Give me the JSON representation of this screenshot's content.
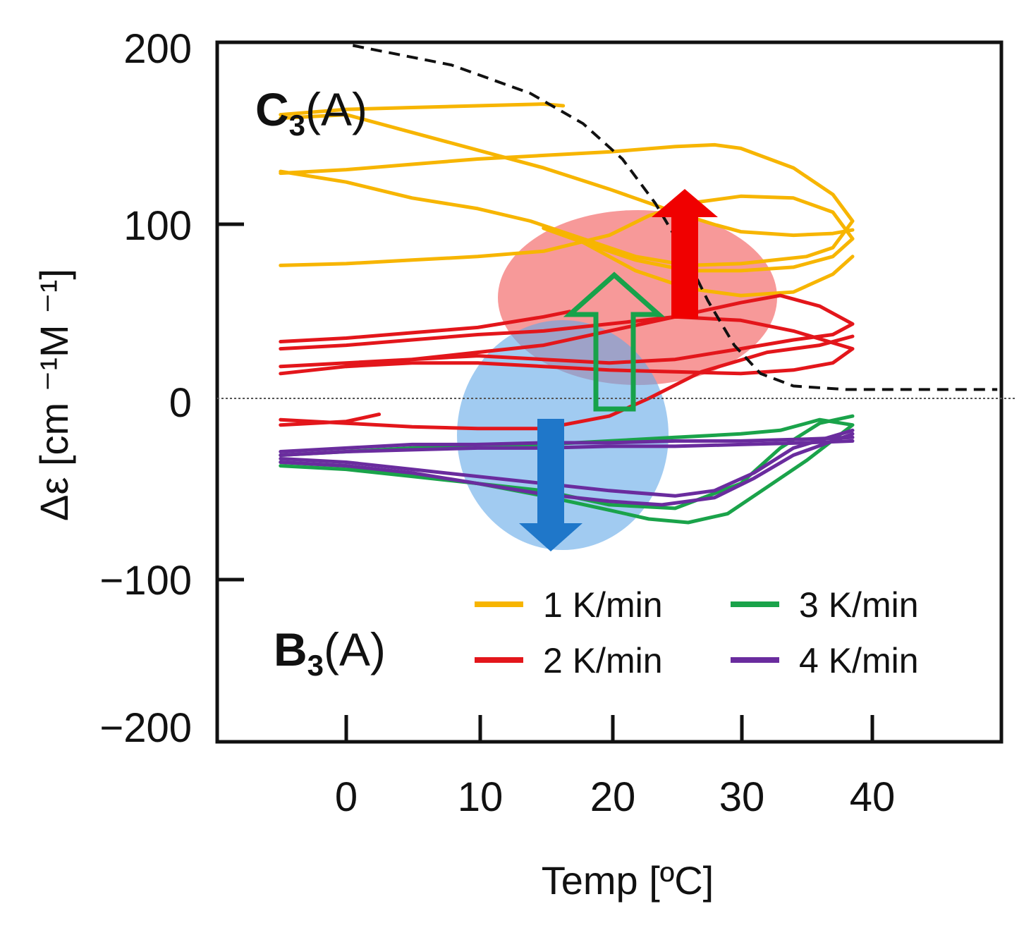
{
  "chart_data": {
    "type": "line",
    "title": "",
    "xlabel": "Temp [ºC]",
    "ylabel": "Δε [cm ⁻¹M ⁻¹]",
    "xlim": [
      -10,
      50
    ],
    "ylim": [
      -200,
      200
    ],
    "xticks": [
      0,
      10,
      20,
      30,
      40
    ],
    "xtick_labels": [
      "0",
      "10",
      "20",
      "30",
      "40"
    ],
    "yticks": [
      200,
      100,
      0,
      -100,
      -200
    ],
    "ytick_labels": [
      "200",
      "100",
      "0",
      "−100",
      "−200"
    ],
    "grid": false,
    "legend_position": "bottom-right",
    "colors": {
      "1 K/min": "#F7B500",
      "2 K/min": "#E3161B",
      "3 K/min": "#1AA34A",
      "4 K/min": "#6A2C9E",
      "dashed_curve": "#111111",
      "red_region": "#F25A5A",
      "blue_region": "#62A8E8",
      "red_arrow": "#F00000",
      "blue_arrow": "#1F77C9",
      "green_arrow": "#17A24A"
    },
    "state_labels": [
      {
        "main": "C",
        "sub": "3",
        "suffix": "(A)"
      },
      {
        "main": "B",
        "sub": "3",
        "suffix": "(A)"
      }
    ],
    "series": [
      {
        "name": "1 K/min",
        "paths": [
          [
            [
              -5,
              160
            ],
            [
              0,
              163
            ],
            [
              5,
              164
            ],
            [
              10,
              165
            ],
            [
              15,
              166
            ],
            [
              16.5,
              165
            ]
          ],
          [
            [
              -5,
              158
            ],
            [
              0,
              160
            ],
            [
              5,
              150
            ],
            [
              10,
              140
            ],
            [
              15,
              130
            ],
            [
              20,
              118
            ],
            [
              25,
              105
            ],
            [
              28,
              98
            ],
            [
              30,
              94
            ],
            [
              34,
              92
            ],
            [
              37,
              93
            ],
            [
              38.5,
              95
            ]
          ],
          [
            [
              -5,
              127
            ],
            [
              0,
              129
            ],
            [
              5,
              132
            ],
            [
              10,
              135
            ],
            [
              15,
              137
            ],
            [
              20,
              139
            ],
            [
              25,
              142
            ],
            [
              28,
              143
            ],
            [
              30,
              141
            ],
            [
              34,
              130
            ],
            [
              37,
              115
            ],
            [
              38.5,
              100
            ],
            [
              37,
              85
            ],
            [
              35,
              80
            ],
            [
              30,
              76
            ],
            [
              26,
              75
            ],
            [
              22,
              80
            ],
            [
              18,
              90
            ],
            [
              14,
              100
            ],
            [
              10,
              107
            ],
            [
              5,
              113
            ],
            [
              0,
              122
            ],
            [
              -5,
              128
            ]
          ],
          [
            [
              -5,
              75
            ],
            [
              0,
              76
            ],
            [
              5,
              78
            ],
            [
              10,
              80
            ],
            [
              15,
              83
            ],
            [
              20,
              92
            ],
            [
              23,
              103
            ],
            [
              26,
              110
            ],
            [
              30,
              114
            ],
            [
              34,
              113
            ],
            [
              37,
              105
            ],
            [
              38.5,
              90
            ],
            [
              37,
              80
            ],
            [
              34,
              74
            ],
            [
              30,
              72
            ],
            [
              26,
              72
            ],
            [
              22,
              78
            ],
            [
              18,
              88
            ],
            [
              15,
              96
            ]
          ],
          [
            [
              15,
              96
            ],
            [
              18,
              88
            ],
            [
              22,
              72
            ],
            [
              26,
              62
            ],
            [
              30,
              58
            ],
            [
              34,
              60
            ],
            [
              37,
              70
            ],
            [
              38.5,
              80
            ]
          ]
        ]
      },
      {
        "name": "2 K/min",
        "paths": [
          [
            [
              -5,
              32
            ],
            [
              0,
              34
            ],
            [
              5,
              37
            ],
            [
              10,
              40
            ],
            [
              15,
              46
            ],
            [
              17,
              49
            ]
          ],
          [
            [
              -5,
              14
            ],
            [
              0,
              18
            ],
            [
              5,
              22
            ],
            [
              10,
              26
            ],
            [
              15,
              30
            ],
            [
              20,
              38
            ],
            [
              25,
              46
            ],
            [
              30,
              54
            ],
            [
              33,
              58
            ],
            [
              36,
              52
            ],
            [
              38.5,
              42
            ],
            [
              37,
              36
            ],
            [
              34,
              33
            ],
            [
              30,
              28
            ],
            [
              25,
              22
            ],
            [
              20,
              20
            ],
            [
              15,
              22
            ],
            [
              10,
              24
            ],
            [
              5,
              22
            ],
            [
              0,
              20
            ],
            [
              -5,
              18
            ]
          ],
          [
            [
              -5,
              28
            ],
            [
              0,
              30
            ],
            [
              5,
              33
            ],
            [
              10,
              36
            ],
            [
              15,
              38
            ],
            [
              20,
              42
            ],
            [
              25,
              46
            ],
            [
              30,
              44
            ],
            [
              34,
              38
            ],
            [
              38.5,
              28
            ],
            [
              37,
              20
            ],
            [
              34,
              16
            ],
            [
              30,
              14
            ],
            [
              25,
              15
            ],
            [
              20,
              16
            ],
            [
              15,
              18
            ],
            [
              10,
              20
            ],
            [
              5,
              20
            ],
            [
              0,
              18
            ]
          ],
          [
            [
              -5,
              -15
            ],
            [
              0,
              -13
            ],
            [
              2.5,
              -9
            ]
          ],
          [
            [
              -5,
              -12
            ],
            [
              0,
              -14
            ],
            [
              5,
              -16
            ],
            [
              10,
              -17
            ],
            [
              15,
              -17
            ],
            [
              20,
              -10
            ],
            [
              23,
              0
            ],
            [
              27,
              15
            ],
            [
              32,
              26
            ],
            [
              36,
              30
            ],
            [
              38.5,
              35
            ]
          ]
        ]
      },
      {
        "name": "3 K/min",
        "paths": [
          [
            [
              -5,
              -38
            ],
            [
              0,
              -40
            ],
            [
              5,
              -44
            ],
            [
              10,
              -48
            ],
            [
              15,
              -55
            ],
            [
              20,
              -63
            ],
            [
              23,
              -68
            ],
            [
              26,
              -70
            ],
            [
              29,
              -65
            ],
            [
              32,
              -50
            ],
            [
              35,
              -35
            ],
            [
              38.5,
              -15
            ],
            [
              36,
              -12
            ],
            [
              33,
              -18
            ],
            [
              30,
              -20
            ],
            [
              25,
              -22
            ],
            [
              20,
              -24
            ],
            [
              15,
              -26
            ],
            [
              10,
              -26
            ],
            [
              5,
              -28
            ],
            [
              0,
              -30
            ],
            [
              -5,
              -32
            ]
          ],
          [
            [
              -5,
              -36
            ],
            [
              0,
              -38
            ],
            [
              5,
              -43
            ],
            [
              10,
              -48
            ],
            [
              15,
              -52
            ],
            [
              20,
              -60
            ],
            [
              25,
              -62
            ],
            [
              30,
              -48
            ],
            [
              33,
              -28
            ],
            [
              36,
              -14
            ],
            [
              38.5,
              -10
            ]
          ]
        ]
      },
      {
        "name": "4 K/min",
        "paths": [
          [
            [
              -5,
              -30
            ],
            [
              0,
              -28
            ],
            [
              5,
              -26
            ],
            [
              10,
              -26
            ],
            [
              15,
              -25
            ],
            [
              20,
              -25
            ],
            [
              25,
              -24
            ],
            [
              30,
              -24
            ],
            [
              35,
              -23
            ],
            [
              38.5,
              -22
            ]
          ],
          [
            [
              -5,
              -34
            ],
            [
              0,
              -36
            ],
            [
              5,
              -40
            ],
            [
              10,
              -44
            ],
            [
              15,
              -48
            ],
            [
              20,
              -52
            ],
            [
              25,
              -55
            ],
            [
              28,
              -52
            ],
            [
              31,
              -42
            ],
            [
              34,
              -28
            ],
            [
              38.5,
              -18
            ]
          ],
          [
            [
              -5,
              -36
            ],
            [
              0,
              -38
            ],
            [
              5,
              -42
            ],
            [
              10,
              -48
            ],
            [
              15,
              -54
            ],
            [
              20,
              -58
            ],
            [
              24,
              -60
            ],
            [
              28,
              -56
            ],
            [
              31,
              -45
            ],
            [
              34,
              -32
            ],
            [
              38.5,
              -20
            ]
          ],
          [
            [
              -5,
              -32
            ],
            [
              0,
              -30
            ],
            [
              5,
              -29
            ],
            [
              10,
              -28
            ],
            [
              15,
              -28
            ],
            [
              20,
              -27
            ],
            [
              25,
              -27
            ],
            [
              30,
              -26
            ],
            [
              35,
              -25
            ],
            [
              38.5,
              -24
            ]
          ]
        ]
      }
    ],
    "dashed_curve": [
      [
        0.5,
        199
      ],
      [
        8,
        188
      ],
      [
        14,
        172
      ],
      [
        18,
        155
      ],
      [
        21,
        135
      ],
      [
        23.5,
        110
      ],
      [
        25.5,
        85
      ],
      [
        27.5,
        55
      ],
      [
        29.5,
        30
      ],
      [
        31.5,
        14
      ],
      [
        34,
        7
      ],
      [
        38,
        5
      ],
      [
        44,
        5
      ],
      [
        49.5,
        5
      ]
    ],
    "zero_line": 0
  }
}
